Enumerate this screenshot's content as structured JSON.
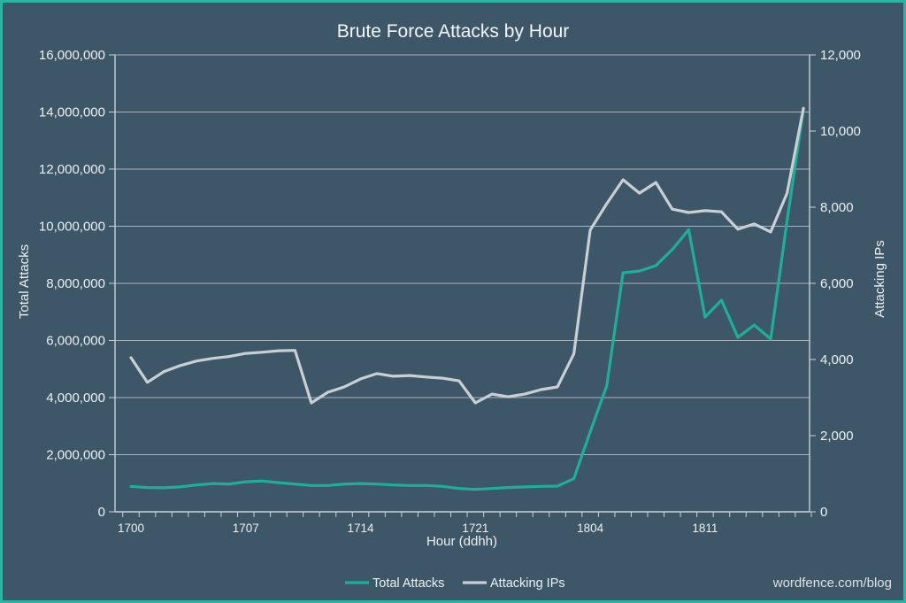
{
  "frame": {
    "background": "#3E5768",
    "border_color": "#2BB5A0"
  },
  "watermark": "wordfence.com/blog",
  "chart_data": {
    "type": "line",
    "title": "Brute Force Attacks by Hour",
    "xlabel": "Hour (ddhh)",
    "ylabel_left": "Total Attacks",
    "ylabel_right": "Attacking IPs",
    "grid": true,
    "legend_position": "bottom",
    "x": [
      "1700",
      "1701",
      "1702",
      "1703",
      "1704",
      "1705",
      "1706",
      "1707",
      "1708",
      "1709",
      "1710",
      "1711",
      "1712",
      "1713",
      "1714",
      "1715",
      "1716",
      "1717",
      "1718",
      "1719",
      "1720",
      "1721",
      "1722",
      "1723",
      "1800",
      "1801",
      "1802",
      "1803",
      "1804",
      "1805",
      "1806",
      "1807",
      "1808",
      "1809",
      "1810",
      "1811",
      "1812",
      "1813",
      "1814",
      "1815",
      "1816",
      "1817"
    ],
    "x_tick_labels": [
      "1700",
      "1707",
      "1714",
      "1721",
      "1804",
      "1811"
    ],
    "x_tick_indices": [
      0,
      7,
      14,
      21,
      28,
      35
    ],
    "left_axis": {
      "min": 0,
      "max": 16000000,
      "step": 2000000,
      "tick_labels": [
        "0",
        "2,000,000",
        "4,000,000",
        "6,000,000",
        "8,000,000",
        "10,000,000",
        "12,000,000",
        "14,000,000",
        "16,000,000"
      ]
    },
    "right_axis": {
      "min": 0,
      "max": 12000,
      "step": 2000,
      "tick_labels": [
        "0",
        "2,000",
        "4,000",
        "6,000",
        "8,000",
        "10,000",
        "12,000"
      ]
    },
    "series": [
      {
        "name": "Total Attacks",
        "axis": "left",
        "color": "#1DAF97",
        "values": [
          890000,
          850000,
          840000,
          870000,
          940000,
          990000,
          970000,
          1050000,
          1080000,
          1020000,
          970000,
          920000,
          920000,
          970000,
          990000,
          970000,
          940000,
          920000,
          920000,
          890000,
          815000,
          785000,
          815000,
          850000,
          870000,
          890000,
          900000,
          1160000,
          2800000,
          4400000,
          8370000,
          8430000,
          8620000,
          9180000,
          9880000,
          6820000,
          7410000,
          6110000,
          6540000,
          6050000,
          10200000,
          14100000
        ]
      },
      {
        "name": "Attacking IPs",
        "axis": "right",
        "color": "#C9CFD4",
        "values": [
          4050,
          3400,
          3680,
          3840,
          3960,
          4030,
          4080,
          4160,
          4190,
          4230,
          4240,
          2860,
          3140,
          3280,
          3490,
          3630,
          3560,
          3580,
          3540,
          3510,
          3440,
          2860,
          3090,
          3020,
          3090,
          3210,
          3280,
          4150,
          7400,
          8090,
          8720,
          8370,
          8650,
          7950,
          7860,
          7910,
          7880,
          7420,
          7560,
          7350,
          8370,
          10600
        ]
      }
    ]
  }
}
